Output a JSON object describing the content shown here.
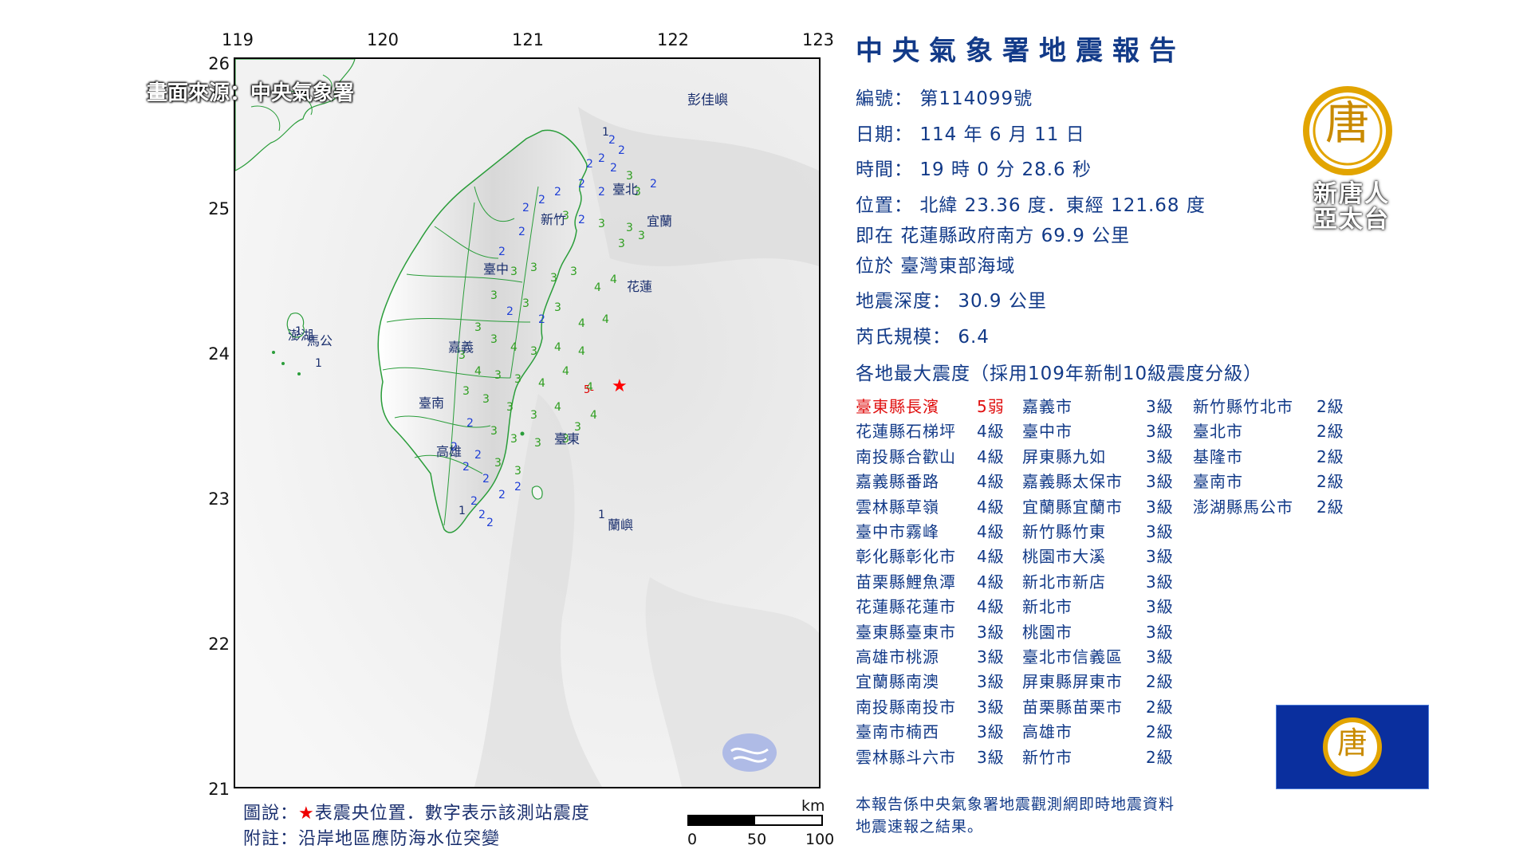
{
  "map": {
    "source_caption": "畫面來源：中央氣象署",
    "lon_ticks": [
      "119",
      "120",
      "121",
      "122",
      "123"
    ],
    "lat_ticks": [
      "26",
      "25",
      "24",
      "23",
      "22",
      "21"
    ],
    "place_labels": [
      "彭佳嶼",
      "臺北",
      "新竹",
      "宜蘭",
      "臺中",
      "花蓮",
      "澎湖",
      "馬公",
      "嘉義",
      "臺南",
      "高雄",
      "臺東",
      "蘭嶼"
    ],
    "epicenter_local_level": "5-",
    "legend_line1_prefix": "圖說：",
    "legend_star": "★",
    "legend_line1_text": "表震央位置．數字表示該測站震度",
    "legend_line2": "附註：沿岸地區應防海水位突變",
    "scale_unit": "km",
    "scale_labels": [
      "0",
      "50",
      "100"
    ],
    "colors": {
      "level2": "#1f3fd6",
      "level3": "#2e9e1f",
      "level4": "#2e9e1f",
      "epicenter": "#ff0000"
    }
  },
  "report": {
    "title": "中央氣象署地震報告",
    "number_label": "編號：",
    "number_value": "第114099號",
    "date_label": "日期：",
    "date_value": "114 年 6 月 11 日",
    "time_label": "時間：",
    "time_value": "19 時 0 分 28.6 秒",
    "location_label": "位置：",
    "location_value": "北緯 23.36 度．東經 121.68 度",
    "reference_line": "即在 花蓮縣政府南方 69.9 公里",
    "region_line": "位於 臺灣東部海域",
    "depth_label": "地震深度：",
    "depth_value": "30.9 公里",
    "magnitude_label": "芮氏規模：",
    "magnitude_value": "6.4",
    "intensity_header": "各地最大震度（採用109年新制10級震度分級）",
    "stations": [
      {
        "name": "臺東縣長濱",
        "level": "5弱",
        "highlight": true
      },
      {
        "name": "花蓮縣石梯坪",
        "level": "4級"
      },
      {
        "name": "南投縣合歡山",
        "level": "4級"
      },
      {
        "name": "嘉義縣番路",
        "level": "4級"
      },
      {
        "name": "雲林縣草嶺",
        "level": "4級"
      },
      {
        "name": "臺中市霧峰",
        "level": "4級"
      },
      {
        "name": "彰化縣彰化市",
        "level": "4級"
      },
      {
        "name": "苗栗縣鯉魚潭",
        "level": "4級"
      },
      {
        "name": "花蓮縣花蓮市",
        "level": "4級"
      },
      {
        "name": "臺東縣臺東市",
        "level": "3級"
      },
      {
        "name": "高雄市桃源",
        "level": "3級"
      },
      {
        "name": "宜蘭縣南澳",
        "level": "3級"
      },
      {
        "name": "南投縣南投市",
        "level": "3級"
      },
      {
        "name": "臺南市楠西",
        "level": "3級"
      },
      {
        "name": "雲林縣斗六市",
        "level": "3級"
      },
      {
        "name": "嘉義市",
        "level": "3級"
      },
      {
        "name": "臺中市",
        "level": "3級"
      },
      {
        "name": "屏東縣九如",
        "level": "3級"
      },
      {
        "name": "嘉義縣太保市",
        "level": "3級"
      },
      {
        "name": "宜蘭縣宜蘭市",
        "level": "3級"
      },
      {
        "name": "新竹縣竹東",
        "level": "3級"
      },
      {
        "name": "桃園市大溪",
        "level": "3級"
      },
      {
        "name": "新北市新店",
        "level": "3級"
      },
      {
        "name": "新北市",
        "level": "3級"
      },
      {
        "name": "桃園市",
        "level": "3級"
      },
      {
        "name": "臺北市信義區",
        "level": "3級"
      },
      {
        "name": "屏東縣屏東市",
        "level": "2級"
      },
      {
        "name": "苗栗縣苗栗市",
        "level": "2級"
      },
      {
        "name": "高雄市",
        "level": "2級"
      },
      {
        "name": "新竹市",
        "level": "2級"
      },
      {
        "name": "新竹縣竹北市",
        "level": "2級"
      },
      {
        "name": "臺北市",
        "level": "2級"
      },
      {
        "name": "基隆市",
        "level": "2級"
      },
      {
        "name": "臺南市",
        "level": "2級"
      },
      {
        "name": "澎湖縣馬公市",
        "level": "2級"
      }
    ],
    "footnote_line1": "本報告係中央氣象署地震觀測網即時地震資料",
    "footnote_line2": "地震速報之結果。"
  },
  "branding": {
    "logo_char": "唐",
    "logo_text_line1": "新唐人",
    "logo_text_line2": "亞太台"
  }
}
